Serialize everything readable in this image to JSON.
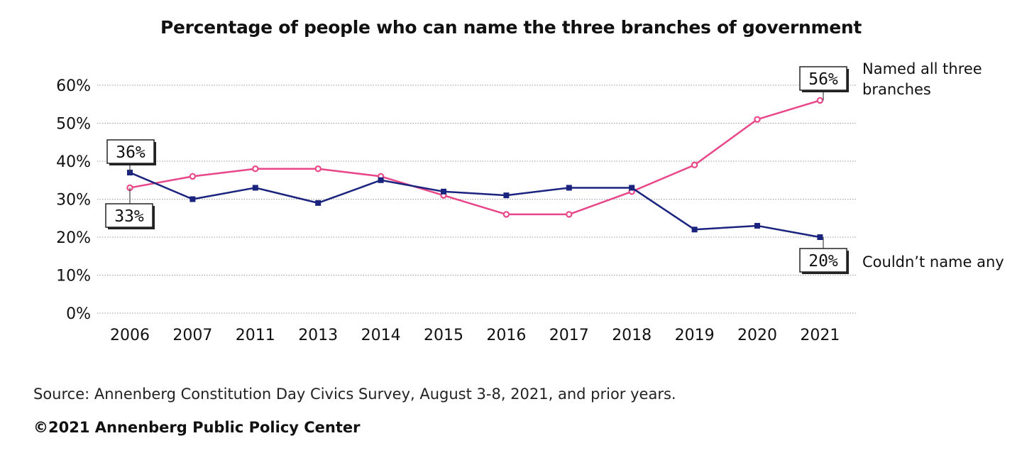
{
  "chart_data": {
    "type": "line",
    "title": "Percentage of people who can name the three branches of government",
    "categories": [
      "2006",
      "2007",
      "2011",
      "2013",
      "2014",
      "2015",
      "2016",
      "2017",
      "2018",
      "2019",
      "2020",
      "2021"
    ],
    "ylim": [
      0,
      60
    ],
    "yticks": [
      "0%",
      "10%",
      "20%",
      "30%",
      "40%",
      "50%",
      "60%"
    ],
    "grid": true,
    "series": [
      {
        "name": "Named all three branches",
        "label_lines": [
          "Named all three",
          "branches"
        ],
        "color": "#e8488a",
        "marker": "circle",
        "values": [
          33,
          36,
          38,
          38,
          36,
          31,
          26,
          26,
          32,
          39,
          51,
          56
        ]
      },
      {
        "name": "Couldn’t name any",
        "label_lines": [
          "Couldn’t name any"
        ],
        "color": "#1a237e",
        "marker": "square",
        "values": [
          37,
          30,
          33,
          29,
          35,
          32,
          31,
          33,
          33,
          22,
          23,
          20
        ]
      }
    ],
    "callouts": [
      {
        "text": "36%"
      },
      {
        "text": "33%"
      },
      {
        "text": "56%"
      },
      {
        "text": "20%"
      }
    ]
  },
  "footer": {
    "source": "Source: Annenberg Constitution Day Civics Survey, August 3-8, 2021, and prior years.",
    "copyright": "©2021 Annenberg Public Policy Center"
  }
}
